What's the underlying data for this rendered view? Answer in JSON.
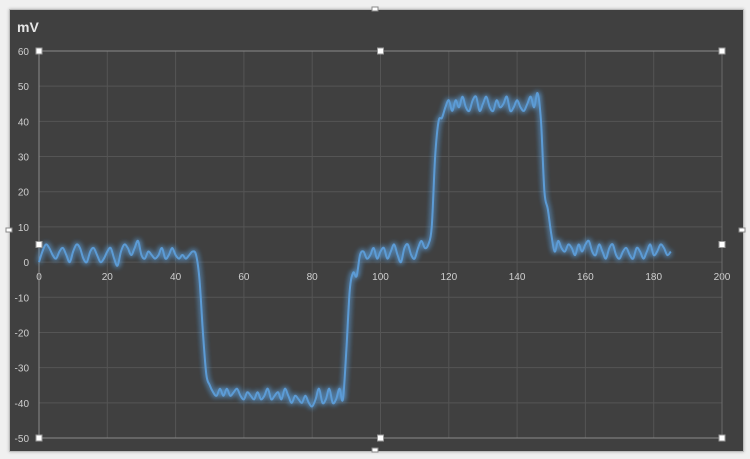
{
  "chart_data": {
    "type": "line",
    "title": "mV",
    "xlabel": "",
    "ylabel": "",
    "xlim": [
      0,
      200
    ],
    "ylim": [
      -50,
      60
    ],
    "xticks": [
      0,
      20,
      40,
      60,
      80,
      100,
      120,
      140,
      160,
      180,
      200
    ],
    "yticks": [
      60,
      50,
      40,
      30,
      20,
      10,
      0,
      -10,
      -20,
      -30,
      -40,
      -50
    ],
    "grid": true,
    "legend": "none",
    "line_color": "#5b9bd5",
    "background": "#404040",
    "x_start": 0,
    "x_step": 1,
    "series": [
      {
        "values": [
          0,
          3,
          5,
          4,
          2,
          1,
          3,
          4,
          2,
          0,
          3,
          5,
          4,
          1,
          0,
          3,
          4,
          2,
          0,
          1,
          3,
          4,
          1,
          -1,
          3,
          5,
          4,
          2,
          4,
          6,
          2,
          1,
          3,
          2,
          1,
          2,
          4,
          1,
          2,
          4,
          2,
          1,
          2,
          1,
          2,
          3,
          2,
          -5,
          -20,
          -32,
          -35,
          -37,
          -38,
          -36,
          -38,
          -36,
          -38,
          -37,
          -36,
          -38,
          -39,
          -37,
          -38,
          -39,
          -37,
          -39,
          -38,
          -36,
          -39,
          -38,
          -37,
          -39,
          -36,
          -38,
          -40,
          -38,
          -39,
          -40,
          -38,
          -40,
          -41,
          -39,
          -36,
          -40,
          -39,
          -36,
          -40,
          -39,
          -36,
          -39,
          -25,
          -8,
          -3,
          -4,
          2,
          3,
          1,
          2,
          4,
          1,
          3,
          4,
          1,
          3,
          5,
          2,
          0,
          4,
          5,
          2,
          1,
          4,
          6,
          4,
          5,
          10,
          30,
          40,
          41,
          44,
          46,
          43,
          46,
          44,
          47,
          44,
          43,
          46,
          47,
          43,
          45,
          47,
          44,
          43,
          46,
          44,
          45,
          47,
          43,
          44,
          46,
          44,
          43,
          45,
          47,
          44,
          48,
          40,
          20,
          15,
          8,
          3,
          6,
          4,
          3,
          5,
          4,
          2,
          5,
          3,
          5,
          6,
          3,
          2,
          5,
          3,
          1,
          4,
          5,
          2,
          1,
          3,
          4,
          2,
          1,
          4,
          3,
          1,
          3,
          5,
          2,
          3,
          5,
          4,
          2,
          3
        ]
      }
    ]
  }
}
